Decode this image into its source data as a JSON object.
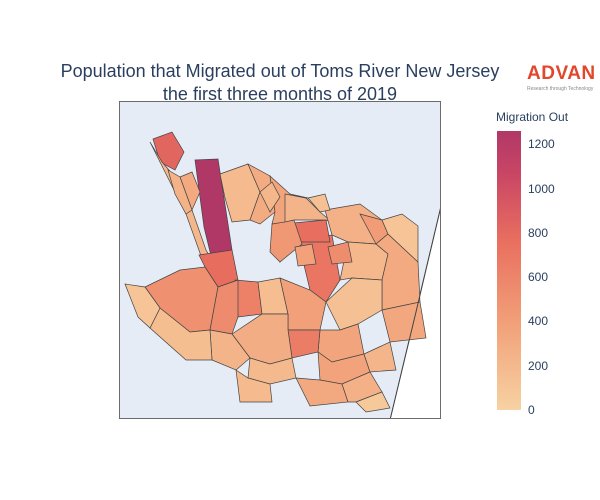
{
  "title": {
    "line1": "Population that Migrated out of Toms River New Jersey",
    "line2": "the first three months of 2019"
  },
  "logo": {
    "word": "ADVAN",
    "tagline": "Research through Technology"
  },
  "colorbar": {
    "title": "Migration Out",
    "ticks": [
      "1200",
      "1000",
      "800",
      "600",
      "400",
      "200",
      "0"
    ],
    "min": 0,
    "max": 1260,
    "colorscale": [
      "#f7d2a2",
      "#f2a27a",
      "#e9705f",
      "#c94565",
      "#b03867"
    ]
  },
  "map": {
    "background": "#e5ecf6",
    "land": "#ffffff",
    "boundary_color": "#444444",
    "region_values": [
      1260,
      700,
      180,
      650,
      520,
      600,
      640,
      380,
      150,
      250,
      300,
      200,
      220,
      350,
      170,
      260,
      280,
      420,
      460,
      140,
      330,
      120,
      300,
      550,
      240,
      200,
      160,
      310,
      270,
      150,
      190,
      220,
      130,
      90,
      450,
      320,
      180,
      260,
      210,
      90,
      110,
      170,
      60
    ]
  }
}
